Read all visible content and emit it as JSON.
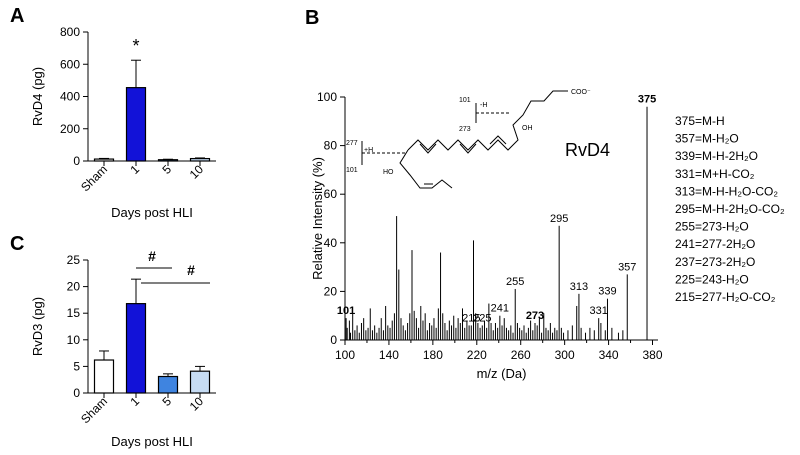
{
  "panels": {
    "A": {
      "label": "A"
    },
    "B": {
      "label": "B"
    },
    "C": {
      "label": "C"
    }
  },
  "chart_data": [
    {
      "panel": "A",
      "type": "bar",
      "categories": [
        "Sham",
        "1",
        "5",
        "10"
      ],
      "values": [
        12,
        455,
        8,
        15
      ],
      "errors": [
        4,
        170,
        3,
        4
      ],
      "colors": [
        "#ffffff",
        "#1212d8",
        "#3f84e0",
        "#c6dcf4"
      ],
      "ylabel": "RvD4 (pg)",
      "xlabel": "Days post HLI",
      "ylim": [
        0,
        800
      ],
      "yticks": [
        0,
        200,
        400,
        600,
        800
      ],
      "significance": [
        {
          "category": "1",
          "symbol": "*"
        }
      ]
    },
    {
      "panel": "C",
      "type": "bar",
      "categories": [
        "Sham",
        "1",
        "5",
        "10"
      ],
      "values": [
        6.2,
        16.8,
        3.1,
        4.1
      ],
      "errors": [
        1.7,
        4.6,
        0.5,
        0.9
      ],
      "colors": [
        "#ffffff",
        "#1212d8",
        "#3f84e0",
        "#c6dcf4"
      ],
      "ylabel": "RvD3 (pg)",
      "xlabel": "Days post HLI",
      "ylim": [
        0,
        25
      ],
      "yticks": [
        0,
        5,
        10,
        15,
        20,
        25
      ],
      "significance": [
        {
          "from": "1",
          "to": "5",
          "symbol": "#"
        },
        {
          "from": "1",
          "to": "10",
          "symbol": "#"
        }
      ]
    },
    {
      "panel": "B",
      "type": "bar",
      "ylabel": "Relative Intensity (%)",
      "xlabel": "m/z (Da)",
      "xlim": [
        100,
        385
      ],
      "ylim": [
        0,
        100
      ],
      "xticks": [
        100,
        140,
        180,
        220,
        260,
        300,
        340,
        380
      ],
      "yticks": [
        0,
        20,
        40,
        60,
        80,
        100
      ],
      "compound": "RvD4",
      "labeled_peaks": [
        {
          "mz": 101,
          "intensity": 9,
          "label": "101",
          "bold": true
        },
        {
          "mz": 215,
          "intensity": 6,
          "label": "215"
        },
        {
          "mz": 225,
          "intensity": 6,
          "label": "225"
        },
        {
          "mz": 241,
          "intensity": 10,
          "label": "241"
        },
        {
          "mz": 255,
          "intensity": 21,
          "label": "255"
        },
        {
          "mz": 273,
          "intensity": 7,
          "label": "273",
          "bold": true
        },
        {
          "mz": 295,
          "intensity": 47,
          "label": "295"
        },
        {
          "mz": 313,
          "intensity": 19,
          "label": "313"
        },
        {
          "mz": 331,
          "intensity": 9,
          "label": "331"
        },
        {
          "mz": 339,
          "intensity": 17,
          "label": "339"
        },
        {
          "mz": 357,
          "intensity": 27,
          "label": "357"
        },
        {
          "mz": 375,
          "intensity": 96,
          "label": "375",
          "bold": true
        }
      ],
      "peaks": [
        [
          102,
          5
        ],
        [
          104,
          8
        ],
        [
          105,
          3
        ],
        [
          107,
          11
        ],
        [
          109,
          4
        ],
        [
          111,
          6
        ],
        [
          113,
          3
        ],
        [
          115,
          7
        ],
        [
          117,
          9
        ],
        [
          119,
          4
        ],
        [
          121,
          5
        ],
        [
          123,
          13
        ],
        [
          125,
          4
        ],
        [
          127,
          6
        ],
        [
          129,
          3
        ],
        [
          131,
          5
        ],
        [
          133,
          9
        ],
        [
          135,
          4
        ],
        [
          137,
          14
        ],
        [
          139,
          6
        ],
        [
          141,
          5
        ],
        [
          143,
          8
        ],
        [
          145,
          11
        ],
        [
          147,
          51
        ],
        [
          149,
          29
        ],
        [
          151,
          9
        ],
        [
          153,
          6
        ],
        [
          155,
          4
        ],
        [
          157,
          7
        ],
        [
          159,
          11
        ],
        [
          161,
          37
        ],
        [
          163,
          12
        ],
        [
          165,
          9
        ],
        [
          167,
          5
        ],
        [
          169,
          14
        ],
        [
          171,
          8
        ],
        [
          173,
          11
        ],
        [
          175,
          4
        ],
        [
          177,
          7
        ],
        [
          179,
          6
        ],
        [
          181,
          9
        ],
        [
          183,
          5
        ],
        [
          185,
          13
        ],
        [
          187,
          36
        ],
        [
          189,
          11
        ],
        [
          191,
          7
        ],
        [
          193,
          4
        ],
        [
          195,
          8
        ],
        [
          197,
          6
        ],
        [
          199,
          10
        ],
        [
          201,
          5
        ],
        [
          203,
          9
        ],
        [
          205,
          7
        ],
        [
          207,
          13
        ],
        [
          209,
          5
        ],
        [
          211,
          8
        ],
        [
          213,
          6
        ],
        [
          217,
          41
        ],
        [
          219,
          11
        ],
        [
          221,
          7
        ],
        [
          223,
          5
        ],
        [
          227,
          8
        ],
        [
          229,
          5
        ],
        [
          231,
          15
        ],
        [
          233,
          7
        ],
        [
          235,
          4
        ],
        [
          237,
          7
        ],
        [
          239,
          5
        ],
        [
          243,
          6
        ],
        [
          245,
          9
        ],
        [
          247,
          5
        ],
        [
          249,
          4
        ],
        [
          251,
          6
        ],
        [
          253,
          3
        ],
        [
          257,
          7
        ],
        [
          259,
          5
        ],
        [
          261,
          4
        ],
        [
          263,
          6
        ],
        [
          265,
          3
        ],
        [
          267,
          5
        ],
        [
          269,
          8
        ],
        [
          271,
          4
        ],
        [
          275,
          6
        ],
        [
          277,
          9
        ],
        [
          279,
          3
        ],
        [
          281,
          11
        ],
        [
          283,
          5
        ],
        [
          285,
          4
        ],
        [
          287,
          7
        ],
        [
          289,
          3
        ],
        [
          291,
          5
        ],
        [
          293,
          4
        ],
        [
          297,
          5
        ],
        [
          299,
          3
        ],
        [
          303,
          4
        ],
        [
          307,
          6
        ],
        [
          311,
          14
        ],
        [
          315,
          5
        ],
        [
          319,
          3
        ],
        [
          323,
          5
        ],
        [
          327,
          4
        ],
        [
          333,
          7
        ],
        [
          337,
          4
        ],
        [
          343,
          5
        ],
        [
          349,
          3
        ],
        [
          353,
          4
        ]
      ],
      "annotations": [
        "375=M-H",
        "357=M-H₂O",
        "339=M-H-2H₂O",
        "331=M+H-CO₂",
        "313=M-H-H₂O-CO₂",
        "295=M-H-2H₂O-CO₂",
        "255=273-H₂O",
        "241=277-2H₂O",
        "237=273-2H₂O",
        "225=243-H₂O",
        "215=277-H₂O-CO₂"
      ],
      "structure_labels": {
        "h_loss": "-H",
        "h_gain": "+H",
        "n101a": "101",
        "n273": "273",
        "n277": "277",
        "n101b": "101",
        "oh1": "OH",
        "oh2": "HO",
        "coo": "COO⁻"
      }
    }
  ]
}
